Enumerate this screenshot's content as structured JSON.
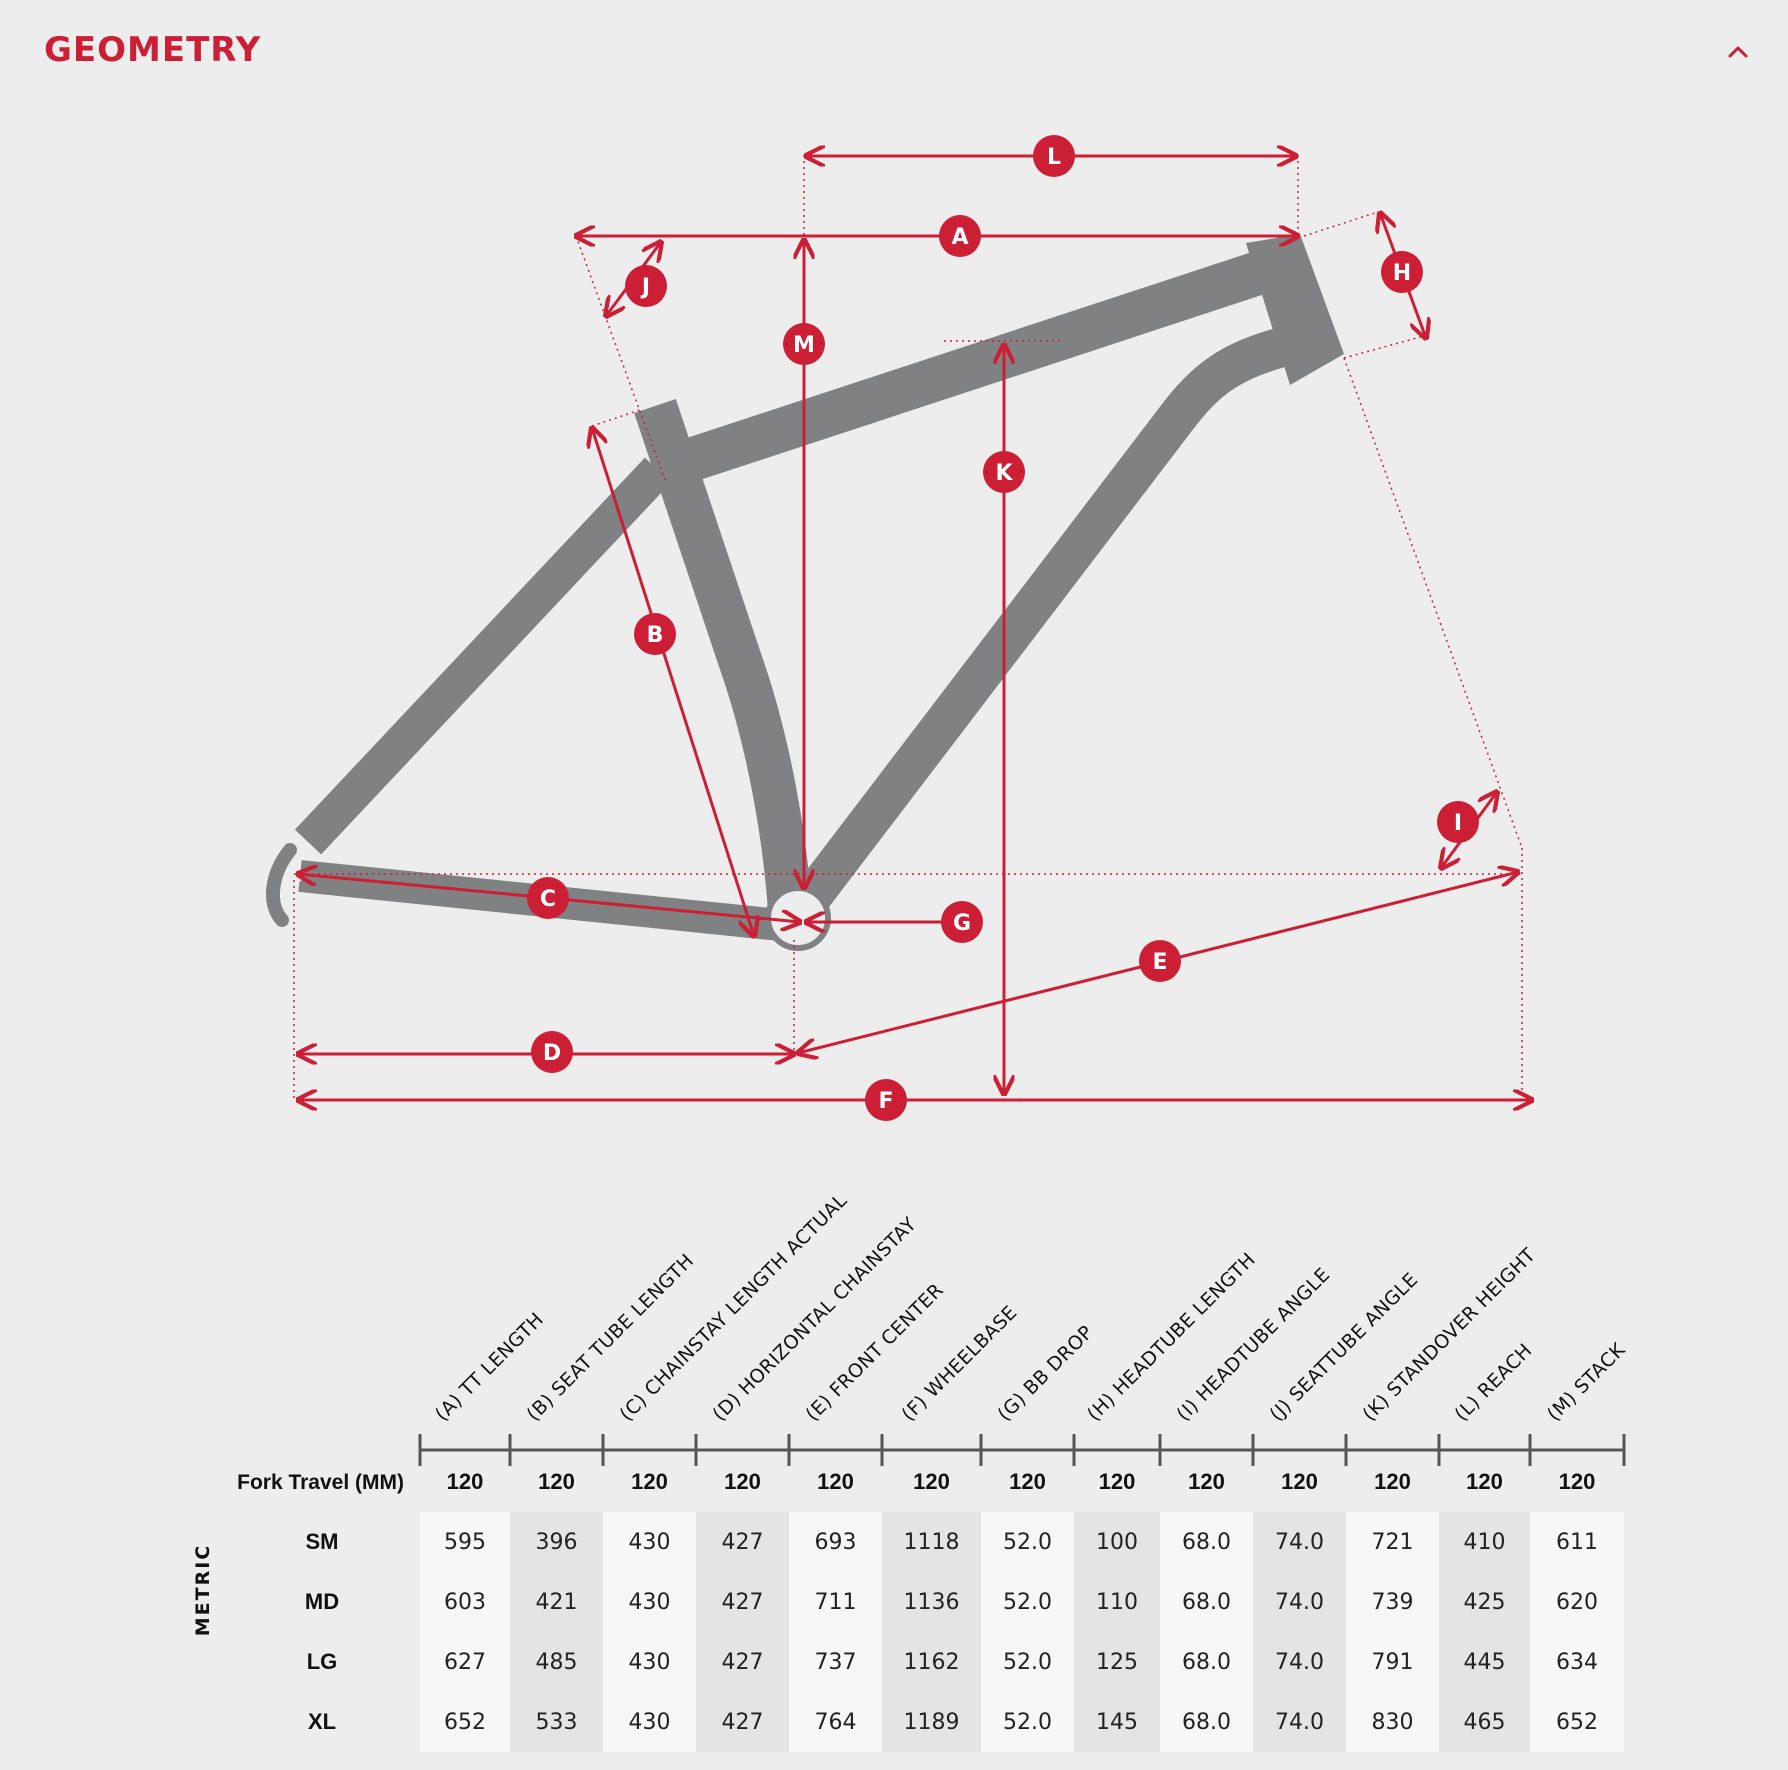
{
  "header": {
    "title": "GEOMETRY",
    "collapse_icon": "chevron-up-icon"
  },
  "diagram": {
    "letters": {
      "A": "A",
      "B": "B",
      "C": "C",
      "D": "D",
      "E": "E",
      "F": "F",
      "G": "G",
      "H": "H",
      "I": "I",
      "J": "J",
      "K": "K",
      "L": "L",
      "M": "M"
    },
    "colors": {
      "accent": "#cc1f36",
      "frame": "#808183",
      "background": "#ededed"
    }
  },
  "table": {
    "unit_label": "METRIC",
    "columns": [
      "(A) TT LENGTH",
      "(B) SEAT TUBE LENGTH",
      "(C) CHAINSTAY LENGTH ACTUAL",
      "(D) HORIZONTAL CHAINSTAY",
      "(E) FRONT CENTER",
      "(F) WHEELBASE",
      "(G) BB DROP",
      "(H) HEADTUBE LENGTH",
      "(I) HEADTUBE ANGLE",
      "(J) SEATTUBE ANGLE",
      "(K) STANDOVER HEIGHT",
      "(L) REACH",
      "(M) STACK"
    ],
    "fork_travel": {
      "label": "Fork Travel (MM)",
      "values": [
        "120",
        "120",
        "120",
        "120",
        "120",
        "120",
        "120",
        "120",
        "120",
        "120",
        "120",
        "120",
        "120"
      ]
    },
    "rows": [
      {
        "size": "SM",
        "values": [
          "595",
          "396",
          "430",
          "427",
          "693",
          "1118",
          "52.0",
          "100",
          "68.0",
          "74.0",
          "721",
          "410",
          "611"
        ]
      },
      {
        "size": "MD",
        "values": [
          "603",
          "421",
          "430",
          "427",
          "711",
          "1136",
          "52.0",
          "110",
          "68.0",
          "74.0",
          "739",
          "425",
          "620"
        ]
      },
      {
        "size": "LG",
        "values": [
          "627",
          "485",
          "430",
          "427",
          "737",
          "1162",
          "52.0",
          "125",
          "68.0",
          "74.0",
          "791",
          "445",
          "634"
        ]
      },
      {
        "size": "XL",
        "values": [
          "652",
          "533",
          "430",
          "427",
          "764",
          "1189",
          "52.0",
          "145",
          "68.0",
          "74.0",
          "830",
          "465",
          "652"
        ]
      }
    ]
  }
}
